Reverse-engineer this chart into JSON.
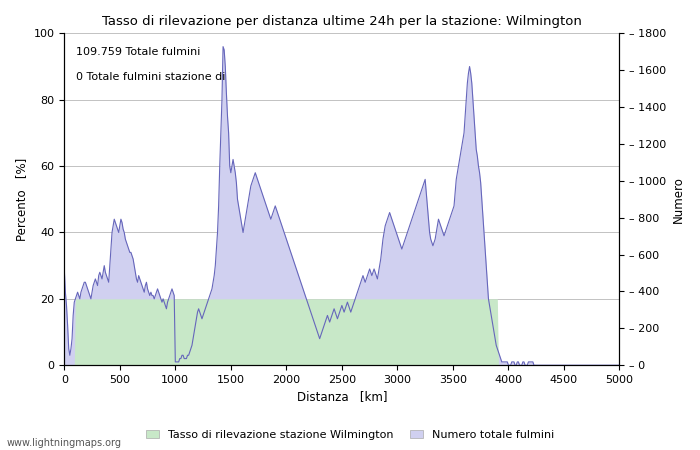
{
  "title": "Tasso di rilevazione per distanza ultime 24h per la stazione: Wilmington",
  "xlabel": "Distanza   [km]",
  "ylabel_left": "Percento   [%]",
  "ylabel_right": "Numero",
  "annotation_line1": "109.759 Totale fulmini",
  "annotation_line2": "0 Totale fulmini stazione di",
  "watermark": "www.lightningmaps.org",
  "legend_label1": "Tasso di rilevazione stazione Wilmington",
  "legend_label2": "Numero totale fulmini",
  "xlim": [
    0,
    5000
  ],
  "ylim_left": [
    0,
    100
  ],
  "ylim_right": [
    0,
    1800
  ],
  "fill_color_blue": "#d0d0f0",
  "fill_color_green": "#c8e8c8",
  "line_color": "#6666bb",
  "bg_color": "#ffffff",
  "yticks_left": [
    0,
    20,
    40,
    60,
    80,
    100
  ],
  "yticks_right": [
    0,
    200,
    400,
    600,
    800,
    1000,
    1200,
    1400,
    1600,
    1800
  ],
  "xticks": [
    0,
    500,
    1000,
    1500,
    2000,
    2500,
    3000,
    3500,
    4000,
    4500,
    5000
  ],
  "x": [
    0,
    10,
    20,
    30,
    40,
    50,
    60,
    70,
    80,
    90,
    100,
    110,
    120,
    130,
    140,
    150,
    160,
    170,
    180,
    190,
    200,
    210,
    220,
    230,
    240,
    250,
    260,
    270,
    280,
    290,
    300,
    310,
    320,
    330,
    340,
    350,
    360,
    370,
    380,
    390,
    400,
    410,
    420,
    430,
    440,
    450,
    460,
    470,
    480,
    490,
    500,
    510,
    520,
    530,
    540,
    550,
    560,
    570,
    580,
    590,
    600,
    610,
    620,
    630,
    640,
    650,
    660,
    670,
    680,
    690,
    700,
    710,
    720,
    730,
    740,
    750,
    760,
    770,
    780,
    790,
    800,
    810,
    820,
    830,
    840,
    850,
    860,
    870,
    880,
    890,
    900,
    910,
    920,
    930,
    940,
    950,
    960,
    970,
    980,
    990,
    1000,
    1010,
    1020,
    1030,
    1040,
    1050,
    1060,
    1070,
    1080,
    1090,
    1100,
    1110,
    1120,
    1130,
    1140,
    1150,
    1160,
    1170,
    1180,
    1190,
    1200,
    1210,
    1220,
    1230,
    1240,
    1250,
    1260,
    1270,
    1280,
    1290,
    1300,
    1310,
    1320,
    1330,
    1340,
    1350,
    1360,
    1370,
    1380,
    1390,
    1400,
    1410,
    1420,
    1430,
    1440,
    1450,
    1460,
    1470,
    1480,
    1490,
    1500,
    1510,
    1520,
    1530,
    1540,
    1550,
    1560,
    1570,
    1580,
    1590,
    1600,
    1610,
    1620,
    1630,
    1640,
    1650,
    1660,
    1670,
    1680,
    1690,
    1700,
    1710,
    1720,
    1730,
    1740,
    1750,
    1760,
    1770,
    1780,
    1790,
    1800,
    1810,
    1820,
    1830,
    1840,
    1850,
    1860,
    1870,
    1880,
    1890,
    1900,
    1910,
    1920,
    1930,
    1940,
    1950,
    1960,
    1970,
    1980,
    1990,
    2000,
    2010,
    2020,
    2030,
    2040,
    2050,
    2060,
    2070,
    2080,
    2090,
    2100,
    2110,
    2120,
    2130,
    2140,
    2150,
    2160,
    2170,
    2180,
    2190,
    2200,
    2210,
    2220,
    2230,
    2240,
    2250,
    2260,
    2270,
    2280,
    2290,
    2300,
    2310,
    2320,
    2330,
    2340,
    2350,
    2360,
    2370,
    2380,
    2390,
    2400,
    2410,
    2420,
    2430,
    2440,
    2450,
    2460,
    2470,
    2480,
    2490,
    2500,
    2510,
    2520,
    2530,
    2540,
    2550,
    2560,
    2570,
    2580,
    2590,
    2600,
    2610,
    2620,
    2630,
    2640,
    2650,
    2660,
    2670,
    2680,
    2690,
    2700,
    2710,
    2720,
    2730,
    2740,
    2750,
    2760,
    2770,
    2780,
    2790,
    2800,
    2810,
    2820,
    2830,
    2840,
    2850,
    2860,
    2870,
    2880,
    2890,
    2900,
    2910,
    2920,
    2930,
    2940,
    2950,
    2960,
    2970,
    2980,
    2990,
    3000,
    3010,
    3020,
    3030,
    3040,
    3050,
    3060,
    3070,
    3080,
    3090,
    3100,
    3110,
    3120,
    3130,
    3140,
    3150,
    3160,
    3170,
    3180,
    3190,
    3200,
    3210,
    3220,
    3230,
    3240,
    3250,
    3260,
    3270,
    3280,
    3290,
    3300,
    3310,
    3320,
    3330,
    3340,
    3350,
    3360,
    3370,
    3380,
    3390,
    3400,
    3410,
    3420,
    3430,
    3440,
    3450,
    3460,
    3470,
    3480,
    3490,
    3500,
    3510,
    3520,
    3530,
    3540,
    3550,
    3560,
    3570,
    3580,
    3590,
    3600,
    3610,
    3620,
    3630,
    3640,
    3650,
    3660,
    3670,
    3680,
    3690,
    3700,
    3710,
    3720,
    3730,
    3740,
    3750,
    3760,
    3770,
    3780,
    3790,
    3800,
    3810,
    3820,
    3830,
    3840,
    3850,
    3860,
    3870,
    3880,
    3890,
    3900,
    3910,
    3920,
    3930,
    3940,
    3950,
    3960,
    3970,
    3980,
    3990,
    4000,
    4010,
    4020,
    4030,
    4040,
    4050,
    4060,
    4070,
    4080,
    4090,
    4100,
    4110,
    4120,
    4130,
    4140,
    4150,
    4160,
    4170,
    4180,
    4190,
    4200,
    4210,
    4220,
    4230,
    4240,
    4250,
    4260,
    4270,
    4280,
    4290,
    4300,
    4310,
    4320,
    4330,
    4340,
    4350,
    4360,
    4370,
    4380,
    4390,
    4400,
    4410,
    4420,
    4430,
    4440,
    4450,
    4460,
    4470,
    4480,
    4490,
    4500,
    4510,
    4520,
    4530,
    4540,
    4550,
    4560,
    4570,
    4580,
    4590,
    4600,
    4610,
    4620,
    4630,
    4640,
    4650,
    4660,
    4670,
    4680,
    4690,
    4700,
    4710,
    4720,
    4730,
    4740,
    4750,
    4760,
    4770,
    4780,
    4790,
    4800,
    4810,
    4820,
    4830,
    4840,
    4850,
    4860,
    4870,
    4880,
    4890,
    4900,
    4910,
    4920,
    4930,
    4940,
    4950,
    4960,
    4970,
    4980,
    4990,
    5000
  ],
  "y_numero_pct": [
    29,
    22,
    18,
    12,
    5,
    3,
    5,
    8,
    15,
    19,
    20,
    21,
    22,
    21,
    20,
    22,
    23,
    24,
    25,
    25,
    24,
    23,
    22,
    21,
    20,
    22,
    24,
    25,
    26,
    25,
    24,
    27,
    28,
    27,
    26,
    28,
    30,
    28,
    27,
    26,
    25,
    30,
    35,
    40,
    42,
    44,
    43,
    42,
    41,
    40,
    42,
    44,
    43,
    41,
    40,
    38,
    37,
    36,
    35,
    34,
    34,
    33,
    32,
    30,
    28,
    26,
    25,
    27,
    26,
    25,
    24,
    23,
    22,
    24,
    25,
    23,
    22,
    21,
    22,
    21,
    21,
    20,
    21,
    22,
    23,
    22,
    21,
    20,
    19,
    20,
    19,
    18,
    17,
    19,
    20,
    21,
    22,
    23,
    22,
    21,
    1,
    1,
    1,
    1,
    2,
    2,
    3,
    3,
    2,
    2,
    2,
    3,
    3,
    4,
    5,
    6,
    8,
    10,
    12,
    14,
    16,
    17,
    16,
    15,
    14,
    15,
    16,
    17,
    18,
    19,
    20,
    21,
    22,
    23,
    25,
    27,
    30,
    35,
    40,
    48,
    60,
    70,
    80,
    96,
    95,
    90,
    82,
    75,
    70,
    60,
    58,
    60,
    62,
    60,
    58,
    55,
    50,
    48,
    46,
    44,
    42,
    40,
    42,
    44,
    46,
    48,
    50,
    52,
    54,
    55,
    56,
    57,
    58,
    57,
    56,
    55,
    54,
    53,
    52,
    51,
    50,
    49,
    48,
    47,
    46,
    45,
    44,
    45,
    46,
    47,
    48,
    47,
    46,
    45,
    44,
    43,
    42,
    41,
    40,
    39,
    38,
    37,
    36,
    35,
    34,
    33,
    32,
    31,
    30,
    29,
    28,
    27,
    26,
    25,
    24,
    23,
    22,
    21,
    20,
    19,
    18,
    17,
    16,
    15,
    14,
    13,
    12,
    11,
    10,
    9,
    8,
    9,
    10,
    11,
    12,
    13,
    14,
    15,
    14,
    13,
    14,
    15,
    16,
    17,
    16,
    15,
    14,
    15,
    16,
    17,
    18,
    17,
    16,
    17,
    18,
    19,
    18,
    17,
    16,
    17,
    18,
    19,
    20,
    21,
    22,
    23,
    24,
    25,
    26,
    27,
    26,
    25,
    26,
    27,
    28,
    29,
    28,
    27,
    28,
    29,
    28,
    27,
    26,
    28,
    30,
    32,
    35,
    38,
    40,
    42,
    43,
    44,
    45,
    46,
    45,
    44,
    43,
    42,
    41,
    40,
    39,
    38,
    37,
    36,
    35,
    36,
    37,
    38,
    39,
    40,
    41,
    42,
    43,
    44,
    45,
    46,
    47,
    48,
    49,
    50,
    51,
    52,
    53,
    54,
    55,
    56,
    52,
    48,
    44,
    40,
    38,
    37,
    36,
    37,
    38,
    40,
    42,
    44,
    43,
    42,
    41,
    40,
    39,
    40,
    41,
    42,
    43,
    44,
    45,
    46,
    47,
    48,
    52,
    56,
    58,
    60,
    62,
    64,
    66,
    68,
    70,
    75,
    80,
    85,
    88,
    90,
    88,
    85,
    80,
    75,
    70,
    65,
    63,
    60,
    58,
    55,
    50,
    45,
    40,
    35,
    30,
    25,
    20,
    18,
    16,
    14,
    12,
    10,
    8,
    6,
    5,
    4,
    3,
    2,
    1,
    1,
    1,
    1,
    1,
    1,
    0,
    0,
    0,
    1,
    1,
    1,
    0,
    0,
    1,
    1,
    0,
    0,
    0,
    1,
    1,
    0,
    0,
    0,
    1,
    1,
    1,
    1,
    1,
    0,
    0,
    0,
    0,
    0,
    0,
    0,
    0,
    0,
    0,
    0,
    0,
    0,
    0,
    0,
    0,
    0,
    0,
    0,
    0,
    0,
    0,
    0,
    0,
    0,
    0,
    0,
    0,
    0,
    0,
    0,
    0,
    0,
    0,
    0,
    0,
    0,
    0,
    0,
    0,
    0,
    0,
    0,
    0,
    0,
    0,
    0,
    0,
    0,
    0,
    0,
    0,
    0,
    0,
    0,
    0,
    0,
    0,
    0,
    0,
    0,
    0,
    0,
    0,
    0,
    0,
    0,
    0,
    0,
    0,
    0,
    0,
    0,
    0,
    0,
    0,
    0,
    0
  ],
  "y_green_pct": [
    0,
    0,
    0,
    0,
    0,
    0,
    0,
    0,
    0,
    0,
    20,
    20,
    20,
    20,
    20,
    20,
    20,
    20,
    20,
    20,
    20,
    20,
    20,
    20,
    20,
    20,
    20,
    20,
    20,
    20,
    20,
    20,
    20,
    20,
    20,
    20,
    20,
    20,
    20,
    20,
    20,
    20,
    20,
    20,
    20,
    20,
    20,
    20,
    20,
    20,
    20,
    20,
    20,
    20,
    20,
    20,
    20,
    20,
    20,
    20,
    20,
    20,
    20,
    20,
    20,
    20,
    20,
    20,
    20,
    20,
    20,
    20,
    20,
    20,
    20,
    20,
    20,
    20,
    20,
    20,
    20,
    20,
    20,
    20,
    20,
    20,
    20,
    20,
    20,
    20,
    20,
    20,
    20,
    20,
    20,
    20,
    20,
    20,
    20,
    20,
    20,
    20,
    20,
    20,
    20,
    20,
    20,
    20,
    20,
    20,
    20,
    20,
    20,
    20,
    20,
    20,
    20,
    20,
    20,
    20,
    20,
    20,
    20,
    20,
    20,
    20,
    20,
    20,
    20,
    20,
    20,
    20,
    20,
    20,
    20,
    20,
    20,
    20,
    20,
    20,
    20,
    20,
    20,
    20,
    20,
    20,
    20,
    20,
    20,
    20,
    20,
    20,
    20,
    20,
    20,
    20,
    20,
    20,
    20,
    20,
    20,
    20,
    20,
    20,
    20,
    20,
    20,
    20,
    20,
    20,
    20,
    20,
    20,
    20,
    20,
    20,
    20,
    20,
    20,
    20,
    20,
    20,
    20,
    20,
    20,
    20,
    20,
    20,
    20,
    20,
    20,
    20,
    20,
    20,
    20,
    20,
    20,
    20,
    20,
    20,
    20,
    20,
    20,
    20,
    20,
    20,
    20,
    20,
    20,
    20,
    20,
    20,
    20,
    20,
    20,
    20,
    20,
    20,
    20,
    20,
    20,
    20,
    20,
    20,
    20,
    20,
    20,
    20,
    20,
    20,
    20,
    20,
    20,
    20,
    20,
    20,
    20,
    20,
    20,
    20,
    20,
    20,
    20,
    20,
    20,
    20,
    20,
    20,
    20,
    20,
    20,
    20,
    20,
    20,
    20,
    20,
    20,
    20,
    20,
    20,
    20,
    20,
    20,
    20,
    20,
    20,
    20,
    20,
    20,
    20,
    20,
    20,
    20,
    20,
    20,
    20,
    20,
    20,
    20,
    20,
    20,
    20,
    20,
    20,
    20,
    20,
    20,
    20,
    20,
    20,
    20,
    20,
    20,
    20,
    20,
    20,
    20,
    20,
    20,
    20,
    20,
    20,
    20,
    20,
    20,
    20,
    20,
    20,
    20,
    20,
    20,
    20,
    20,
    20,
    20,
    20,
    20,
    20,
    20,
    20,
    20,
    20,
    20,
    20,
    20,
    20,
    20,
    20,
    20,
    20,
    20,
    20,
    20,
    20,
    20,
    20,
    20,
    20,
    20,
    20,
    20,
    20,
    20,
    20,
    20,
    20,
    20,
    20,
    20,
    20,
    20,
    20,
    20,
    20,
    20,
    20,
    20,
    20,
    20,
    20,
    20,
    20,
    20,
    20,
    20,
    20,
    20,
    20,
    20,
    20,
    20,
    20,
    20,
    20,
    20,
    20,
    20,
    20,
    20,
    20,
    20,
    20,
    20,
    20,
    20,
    20,
    20,
    20,
    20,
    20,
    20,
    0,
    0,
    0,
    0,
    0,
    0,
    0,
    0,
    0,
    0,
    0,
    0,
    0,
    0,
    0,
    0,
    0,
    0,
    0,
    0,
    0,
    0,
    0,
    0,
    0,
    0,
    0,
    0,
    0,
    0,
    0,
    0,
    0,
    0,
    0,
    0,
    0,
    0,
    0,
    0,
    0,
    0,
    0,
    0,
    0,
    0,
    0,
    0,
    0,
    0,
    0,
    0,
    0,
    0,
    0,
    0,
    0,
    0,
    0,
    0,
    0,
    0,
    0,
    0,
    0,
    0,
    0,
    0,
    0,
    0,
    0,
    0,
    0,
    0,
    0,
    0,
    0,
    0,
    0,
    0,
    0,
    0,
    0,
    0,
    0,
    0,
    0,
    0,
    0,
    0,
    0,
    0,
    0,
    0,
    0,
    0,
    0,
    0,
    0,
    0,
    0,
    0,
    0,
    0,
    0,
    0,
    0,
    0,
    0,
    0
  ]
}
